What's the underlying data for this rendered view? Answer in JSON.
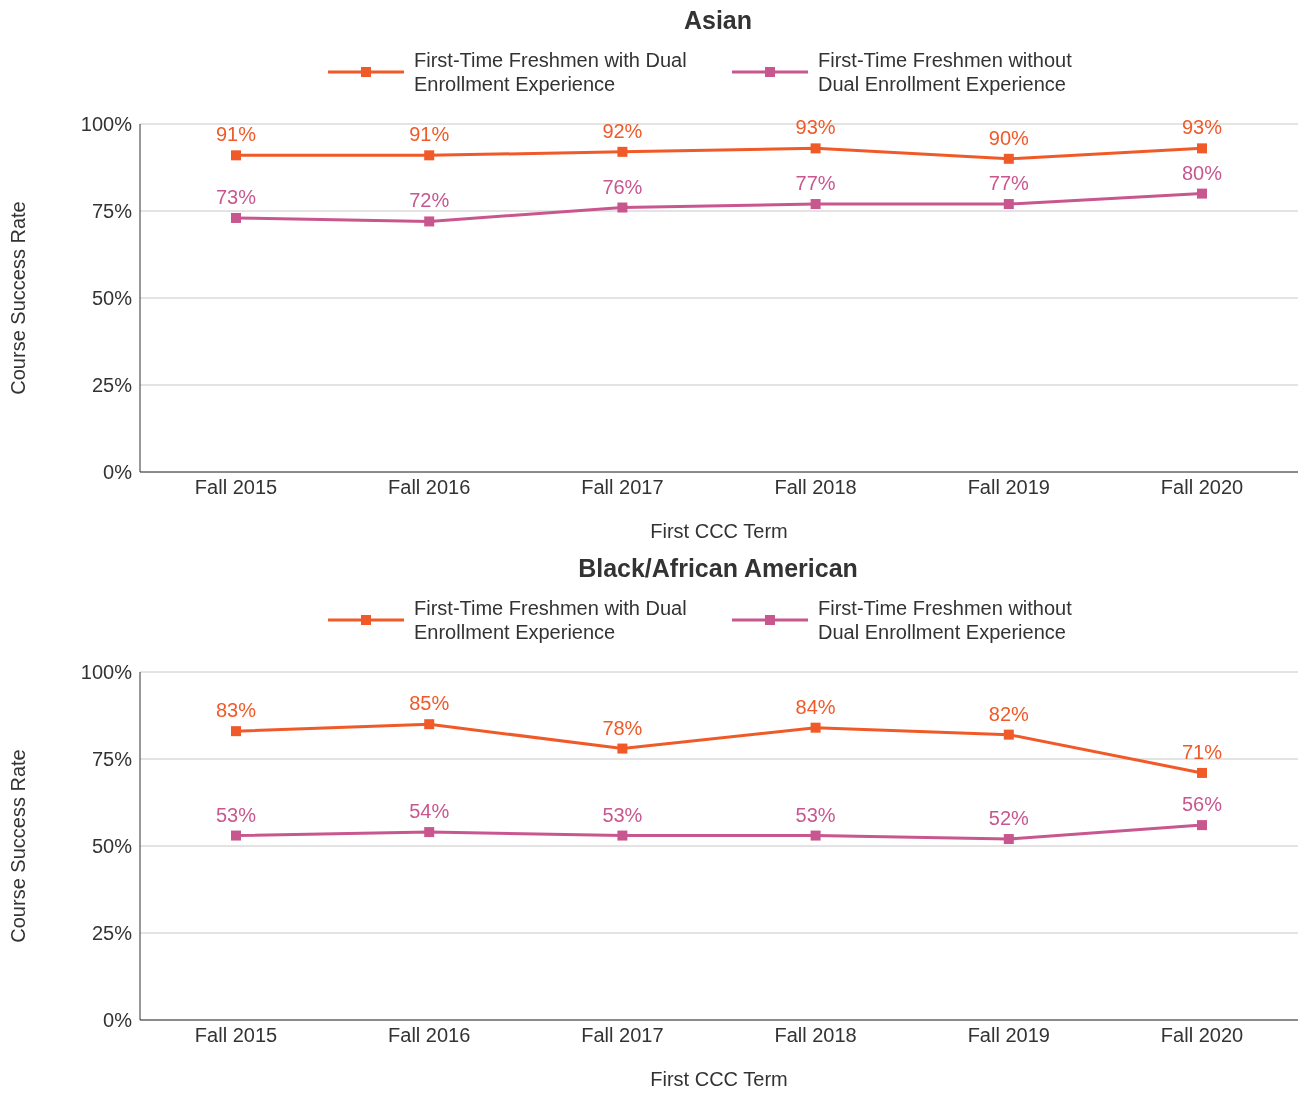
{
  "chart_data": [
    {
      "type": "line",
      "title": "Asian",
      "xlabel": "First CCC Term",
      "ylabel": "Course Success Rate",
      "categories": [
        "Fall 2015",
        "Fall 2016",
        "Fall 2017",
        "Fall 2018",
        "Fall 2019",
        "Fall 2020"
      ],
      "series": [
        {
          "name": "First-Time Freshmen with Dual Enrollment Experience",
          "color": "#f05a28",
          "values": [
            91,
            91,
            92,
            93,
            90,
            93
          ],
          "value_labels": [
            "91%",
            "91%",
            "92%",
            "93%",
            "90%",
            "93%"
          ]
        },
        {
          "name": "First-Time Freshmen without Dual Enrollment Experience",
          "color": "#c9578f",
          "values": [
            73,
            72,
            76,
            77,
            77,
            80
          ],
          "value_labels": [
            "73%",
            "72%",
            "76%",
            "77%",
            "77%",
            "80%"
          ]
        }
      ],
      "ylim": [
        0,
        100
      ],
      "yticks": [
        {
          "value": 0,
          "label": "0%"
        },
        {
          "value": 25,
          "label": "25%"
        },
        {
          "value": 50,
          "label": "50%"
        },
        {
          "value": 75,
          "label": "75%"
        },
        {
          "value": 100,
          "label": "100%"
        }
      ],
      "grid": "y",
      "legend": "top",
      "marker": "square",
      "line_style": "solid"
    },
    {
      "type": "line",
      "title": "Black/African American",
      "xlabel": "First CCC Term",
      "ylabel": "Course Success Rate",
      "categories": [
        "Fall 2015",
        "Fall 2016",
        "Fall 2017",
        "Fall 2018",
        "Fall 2019",
        "Fall 2020"
      ],
      "series": [
        {
          "name": "First-Time Freshmen with Dual Enrollment Experience",
          "color": "#f05a28",
          "values": [
            83,
            85,
            78,
            84,
            82,
            71
          ],
          "value_labels": [
            "83%",
            "85%",
            "78%",
            "84%",
            "82%",
            "71%"
          ]
        },
        {
          "name": "First-Time Freshmen without Dual Enrollment Experience",
          "color": "#c9578f",
          "values": [
            53,
            54,
            53,
            53,
            52,
            56
          ],
          "value_labels": [
            "53%",
            "54%",
            "53%",
            "53%",
            "52%",
            "56%"
          ]
        }
      ],
      "ylim": [
        0,
        100
      ],
      "yticks": [
        {
          "value": 0,
          "label": "0%"
        },
        {
          "value": 25,
          "label": "25%"
        },
        {
          "value": 50,
          "label": "50%"
        },
        {
          "value": 75,
          "label": "75%"
        },
        {
          "value": 100,
          "label": "100%"
        }
      ],
      "grid": "y",
      "legend": "top",
      "marker": "square",
      "line_style": "solid"
    }
  ]
}
